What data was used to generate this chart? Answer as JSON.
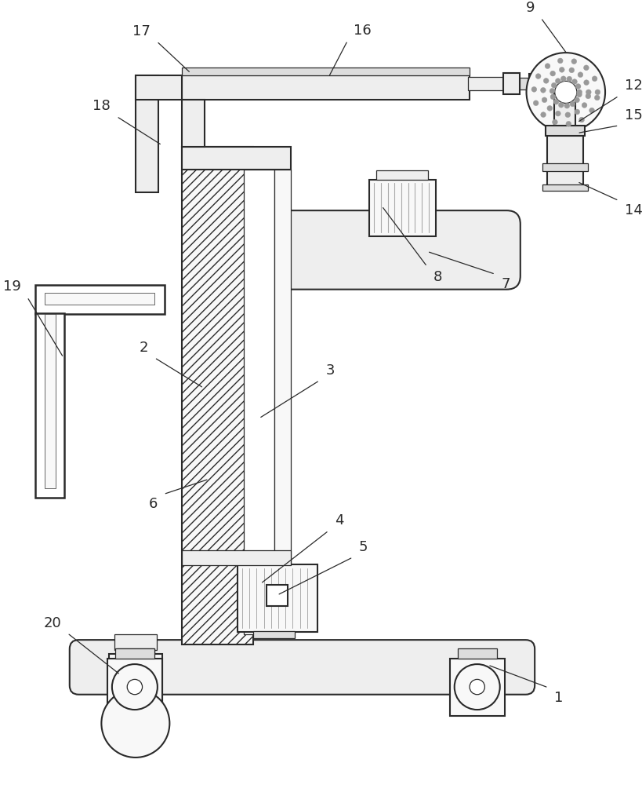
{
  "bg_color": "#ffffff",
  "line_color": "#2a2a2a",
  "lw_main": 1.5,
  "lw_thin": 0.9,
  "fc_light": "#f8f8f8",
  "fc_mid": "#eeeeee",
  "fc_dark": "#dddddd"
}
